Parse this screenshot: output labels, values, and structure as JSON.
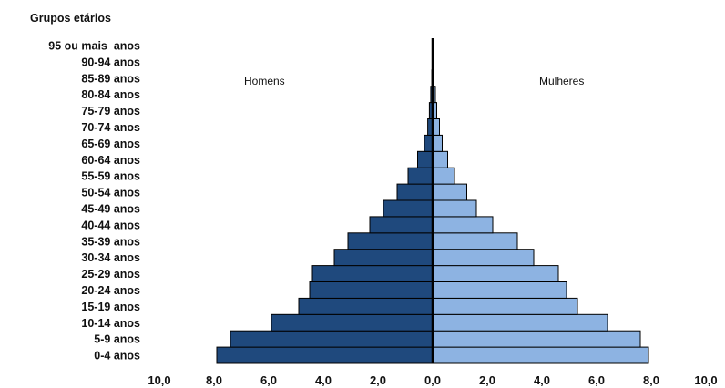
{
  "chart_data": {
    "type": "bar",
    "orientation": "horizontal",
    "ylabel": "Grupos etários",
    "categories": [
      "0-4 anos",
      "5-9 anos",
      "10-14 anos",
      "15-19 anos",
      "20-24 anos",
      "25-29 anos",
      "30-34 anos",
      "35-39 anos",
      "40-44 anos",
      "45-49 anos",
      "50-54 anos",
      "55-59 anos",
      "60-64 anos",
      "65-69 anos",
      "70-74 anos",
      "75-79 anos",
      "80-84 anos",
      "85-89 anos",
      "90-94 anos",
      "95 ou mais  anos"
    ],
    "series": [
      {
        "name": "Homens",
        "side": "left",
        "color": "#1f497d",
        "values": [
          7.9,
          7.4,
          5.9,
          4.9,
          4.5,
          4.4,
          3.6,
          3.1,
          2.3,
          1.8,
          1.3,
          0.9,
          0.55,
          0.3,
          0.18,
          0.12,
          0.07,
          0.03,
          0.01,
          0.0
        ]
      },
      {
        "name": "Mulheres",
        "side": "right",
        "color": "#8db3e2",
        "values": [
          7.9,
          7.6,
          6.4,
          5.3,
          4.9,
          4.6,
          3.7,
          3.1,
          2.2,
          1.6,
          1.25,
          0.8,
          0.55,
          0.35,
          0.25,
          0.15,
          0.1,
          0.05,
          0.02,
          0.0
        ]
      }
    ],
    "xlim": [
      -10,
      10
    ],
    "xticks": [
      "10,0",
      "8,0",
      "6,0",
      "4,0",
      "2,0",
      "0,0",
      "2,0",
      "4,0",
      "6,0",
      "8,0",
      "10,0"
    ],
    "grid": false,
    "legend": "inside-top"
  }
}
